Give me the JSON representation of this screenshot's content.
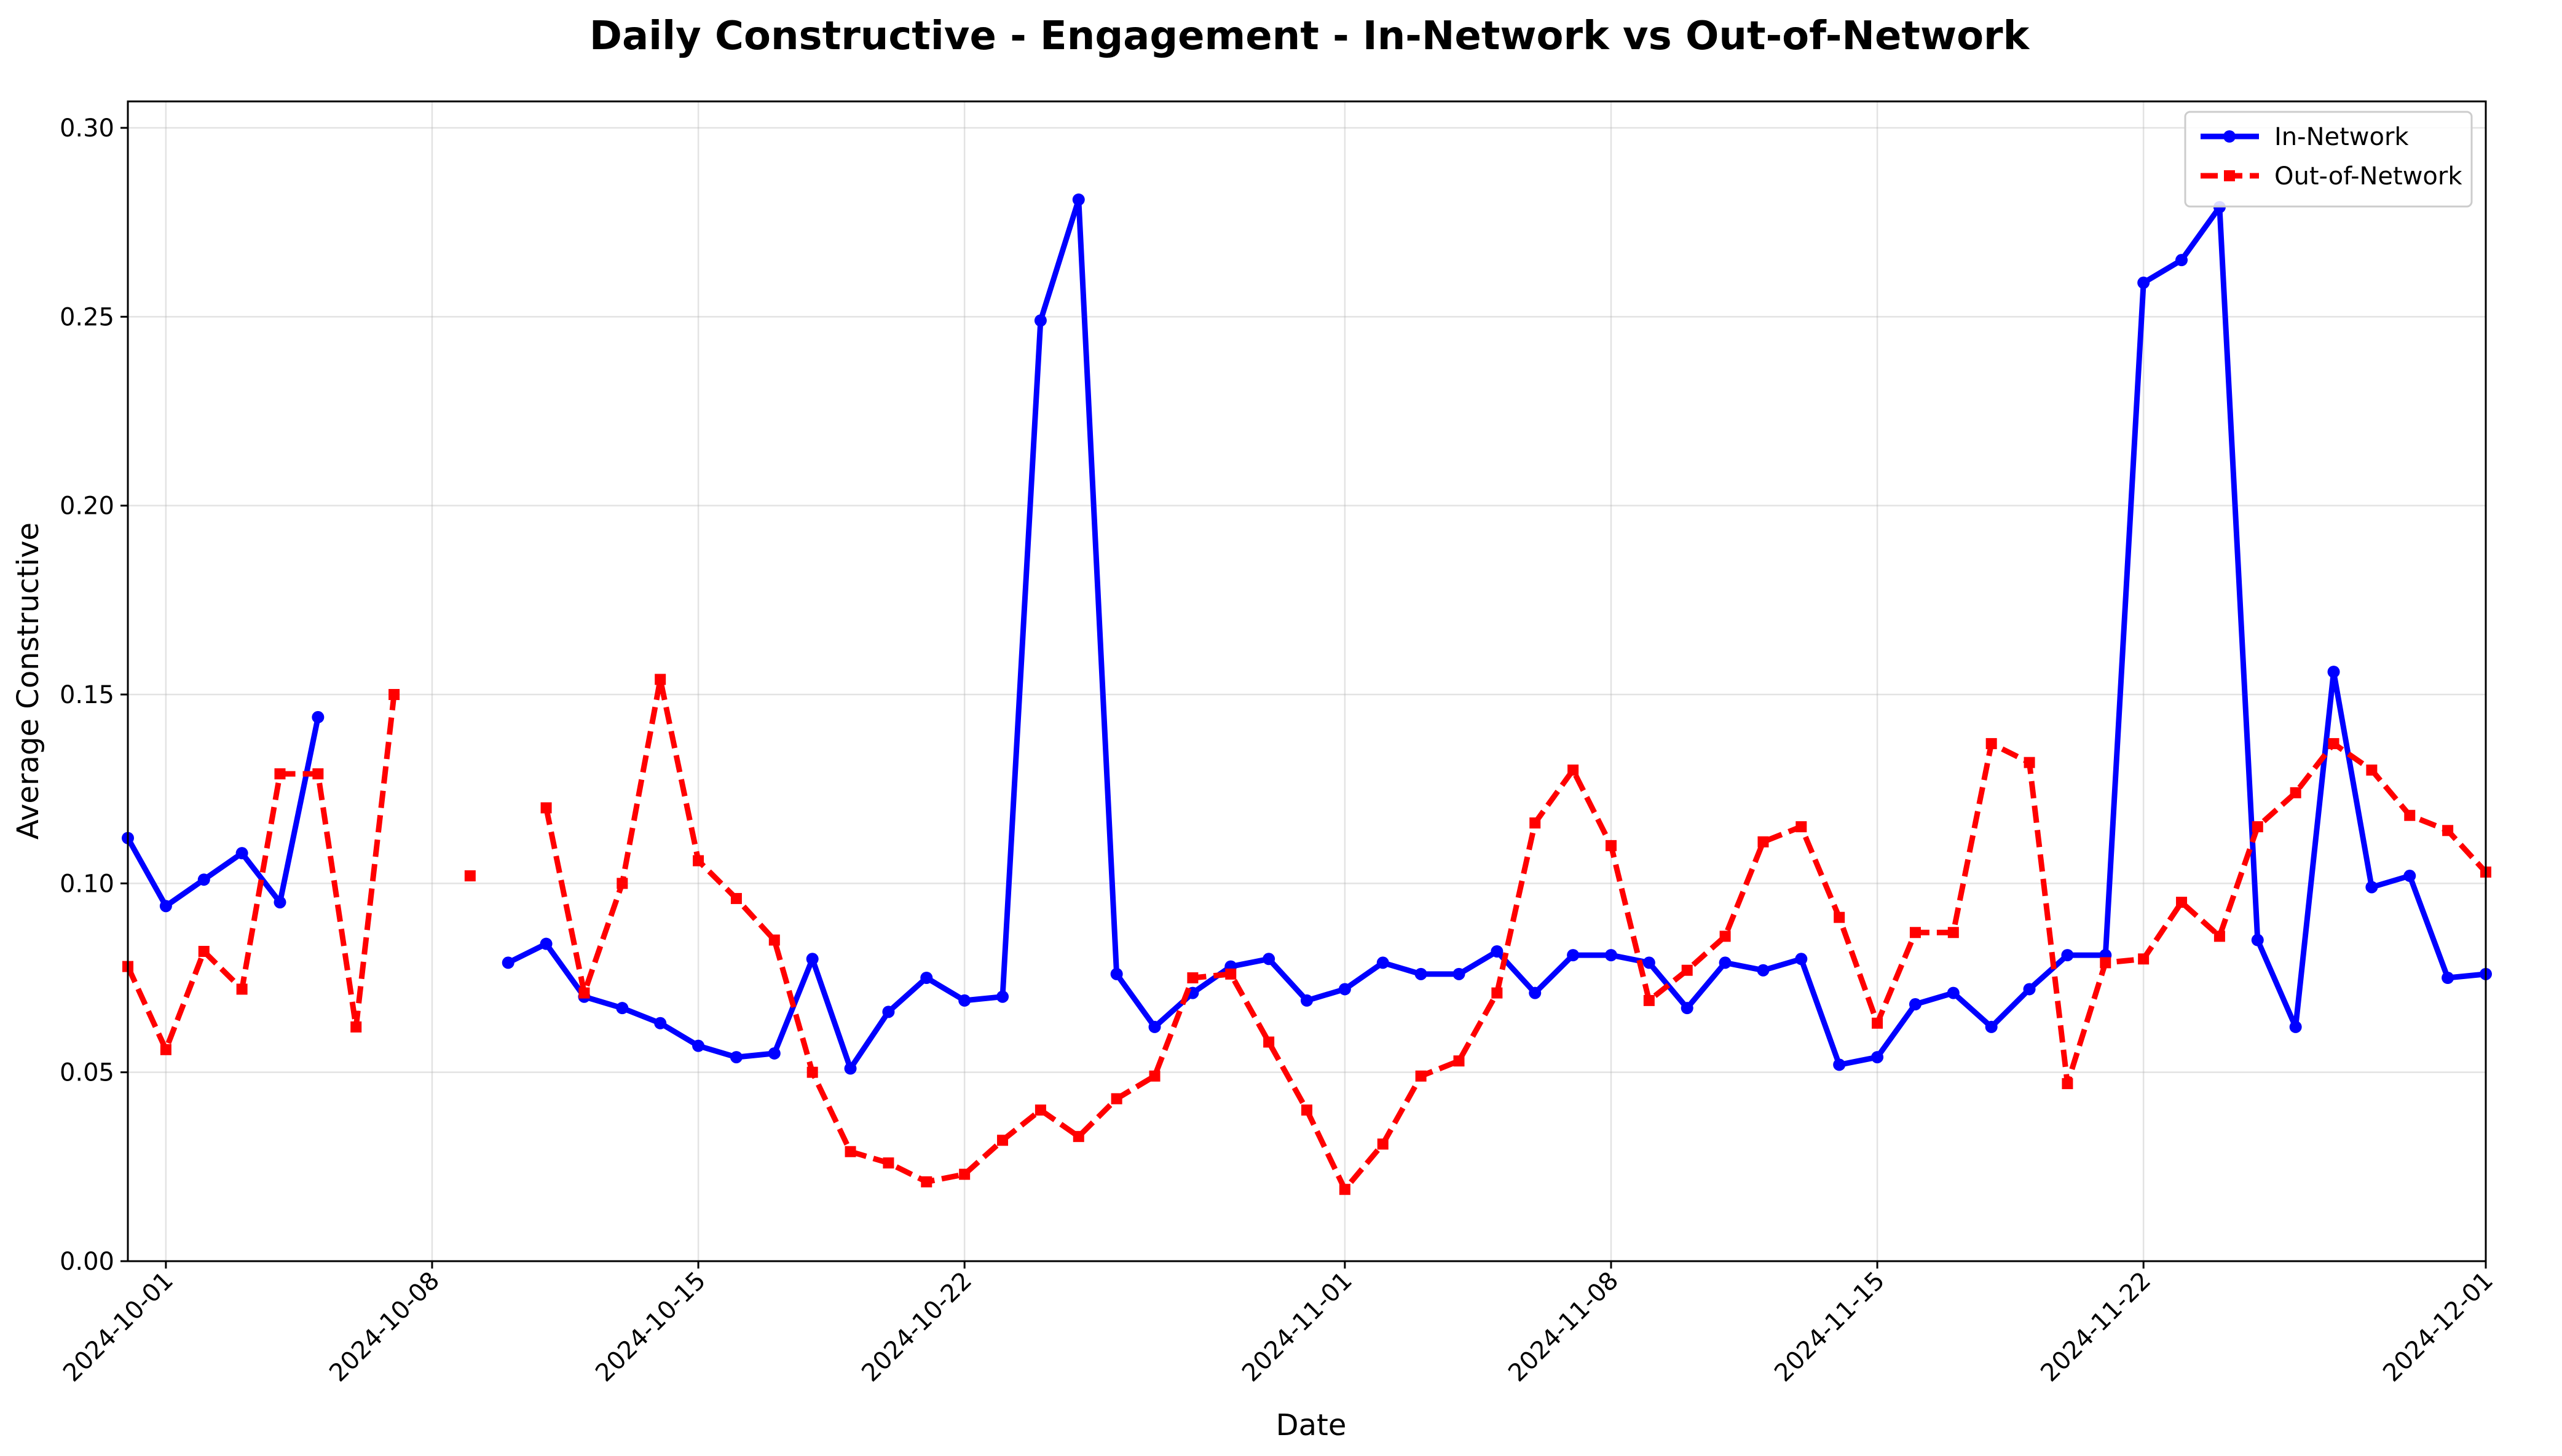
{
  "chart_data": {
    "type": "line",
    "title": "Daily Constructive - Engagement - In-Network vs Out-of-Network",
    "xlabel": "Date",
    "ylabel": "Average Constructive",
    "x_range": [
      "2024-09-30",
      "2024-12-01"
    ],
    "ylim": [
      0,
      0.307
    ],
    "x_ticks": [
      "2024-10-01",
      "2024-10-08",
      "2024-10-15",
      "2024-10-22",
      "2024-11-01",
      "2024-11-08",
      "2024-11-15",
      "2024-11-22",
      "2024-12-01"
    ],
    "y_ticks": [
      "0.00",
      "0.05",
      "0.10",
      "0.15",
      "0.20",
      "0.25",
      "0.30"
    ],
    "grid": true,
    "legend_position": "top-right",
    "series": [
      {
        "name": "In-Network",
        "color": "#0000ff",
        "line_style": "solid",
        "marker": "circle",
        "points": [
          [
            "2024-09-30",
            0.112
          ],
          [
            "2024-10-01",
            0.094
          ],
          [
            "2024-10-02",
            0.101
          ],
          [
            "2024-10-03",
            0.108
          ],
          [
            "2024-10-04",
            0.095
          ],
          [
            "2024-10-05",
            0.144
          ],
          [
            "2024-10-10",
            0.079
          ],
          [
            "2024-10-11",
            0.084
          ],
          [
            "2024-10-12",
            0.07
          ],
          [
            "2024-10-13",
            0.067
          ],
          [
            "2024-10-14",
            0.063
          ],
          [
            "2024-10-15",
            0.057
          ],
          [
            "2024-10-16",
            0.054
          ],
          [
            "2024-10-17",
            0.055
          ],
          [
            "2024-10-18",
            0.08
          ],
          [
            "2024-10-19",
            0.051
          ],
          [
            "2024-10-20",
            0.066
          ],
          [
            "2024-10-21",
            0.075
          ],
          [
            "2024-10-22",
            0.069
          ],
          [
            "2024-10-23",
            0.07
          ],
          [
            "2024-10-24",
            0.249
          ],
          [
            "2024-10-25",
            0.281
          ],
          [
            "2024-10-26",
            0.076
          ],
          [
            "2024-10-27",
            0.062
          ],
          [
            "2024-10-28",
            0.071
          ],
          [
            "2024-10-29",
            0.078
          ],
          [
            "2024-10-30",
            0.08
          ],
          [
            "2024-10-31",
            0.069
          ],
          [
            "2024-11-01",
            0.072
          ],
          [
            "2024-11-02",
            0.079
          ],
          [
            "2024-11-03",
            0.076
          ],
          [
            "2024-11-04",
            0.076
          ],
          [
            "2024-11-05",
            0.082
          ],
          [
            "2024-11-06",
            0.071
          ],
          [
            "2024-11-07",
            0.081
          ],
          [
            "2024-11-08",
            0.081
          ],
          [
            "2024-11-09",
            0.079
          ],
          [
            "2024-11-10",
            0.067
          ],
          [
            "2024-11-11",
            0.079
          ],
          [
            "2024-11-12",
            0.077
          ],
          [
            "2024-11-13",
            0.08
          ],
          [
            "2024-11-14",
            0.052
          ],
          [
            "2024-11-15",
            0.054
          ],
          [
            "2024-11-16",
            0.068
          ],
          [
            "2024-11-17",
            0.071
          ],
          [
            "2024-11-18",
            0.062
          ],
          [
            "2024-11-19",
            0.072
          ],
          [
            "2024-11-20",
            0.081
          ],
          [
            "2024-11-21",
            0.081
          ],
          [
            "2024-11-22",
            0.259
          ],
          [
            "2024-11-23",
            0.265
          ],
          [
            "2024-11-24",
            0.279
          ],
          [
            "2024-11-25",
            0.085
          ],
          [
            "2024-11-26",
            0.062
          ],
          [
            "2024-11-27",
            0.156
          ],
          [
            "2024-11-28",
            0.099
          ],
          [
            "2024-11-29",
            0.102
          ],
          [
            "2024-11-30",
            0.075
          ],
          [
            "2024-12-01",
            0.076
          ]
        ]
      },
      {
        "name": "Out-of-Network",
        "color": "#ff0000",
        "line_style": "dashed",
        "marker": "square",
        "points": [
          [
            "2024-09-30",
            0.078
          ],
          [
            "2024-10-01",
            0.056
          ],
          [
            "2024-10-02",
            0.082
          ],
          [
            "2024-10-03",
            0.072
          ],
          [
            "2024-10-04",
            0.129
          ],
          [
            "2024-10-05",
            0.129
          ],
          [
            "2024-10-06",
            0.062
          ],
          [
            "2024-10-07",
            0.15
          ],
          [
            "2024-10-09",
            0.102
          ],
          [
            "2024-10-11",
            0.12
          ],
          [
            "2024-10-12",
            0.071
          ],
          [
            "2024-10-13",
            0.1
          ],
          [
            "2024-10-14",
            0.154
          ],
          [
            "2024-10-15",
            0.106
          ],
          [
            "2024-10-16",
            0.096
          ],
          [
            "2024-10-17",
            0.085
          ],
          [
            "2024-10-18",
            0.05
          ],
          [
            "2024-10-19",
            0.029
          ],
          [
            "2024-10-20",
            0.026
          ],
          [
            "2024-10-21",
            0.021
          ],
          [
            "2024-10-22",
            0.023
          ],
          [
            "2024-10-23",
            0.032
          ],
          [
            "2024-10-24",
            0.04
          ],
          [
            "2024-10-25",
            0.033
          ],
          [
            "2024-10-26",
            0.043
          ],
          [
            "2024-10-27",
            0.049
          ],
          [
            "2024-10-28",
            0.075
          ],
          [
            "2024-10-29",
            0.076
          ],
          [
            "2024-10-30",
            0.058
          ],
          [
            "2024-10-31",
            0.04
          ],
          [
            "2024-11-01",
            0.019
          ],
          [
            "2024-11-02",
            0.031
          ],
          [
            "2024-11-03",
            0.049
          ],
          [
            "2024-11-04",
            0.053
          ],
          [
            "2024-11-05",
            0.071
          ],
          [
            "2024-11-06",
            0.116
          ],
          [
            "2024-11-07",
            0.13
          ],
          [
            "2024-11-08",
            0.11
          ],
          [
            "2024-11-09",
            0.069
          ],
          [
            "2024-11-10",
            0.077
          ],
          [
            "2024-11-11",
            0.086
          ],
          [
            "2024-11-12",
            0.111
          ],
          [
            "2024-11-13",
            0.115
          ],
          [
            "2024-11-14",
            0.091
          ],
          [
            "2024-11-15",
            0.063
          ],
          [
            "2024-11-16",
            0.087
          ],
          [
            "2024-11-17",
            0.087
          ],
          [
            "2024-11-18",
            0.137
          ],
          [
            "2024-11-19",
            0.132
          ],
          [
            "2024-11-20",
            0.047
          ],
          [
            "2024-11-21",
            0.079
          ],
          [
            "2024-11-22",
            0.08
          ],
          [
            "2024-11-23",
            0.095
          ],
          [
            "2024-11-24",
            0.086
          ],
          [
            "2024-11-25",
            0.115
          ],
          [
            "2024-11-26",
            0.124
          ],
          [
            "2024-11-27",
            0.137
          ],
          [
            "2024-11-28",
            0.13
          ],
          [
            "2024-11-29",
            0.118
          ],
          [
            "2024-11-30",
            0.114
          ],
          [
            "2024-12-01",
            0.103
          ]
        ]
      }
    ]
  }
}
